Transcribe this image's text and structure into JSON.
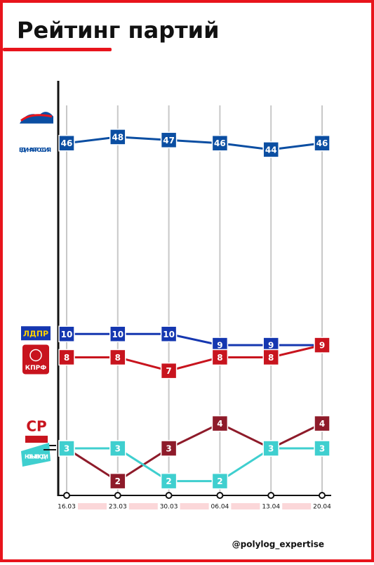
{
  "chart_data": {
    "type": "line",
    "title": "Рейтинг партий",
    "categories": [
      "16.03",
      "23.03",
      "30.03",
      "06.04",
      "13.04",
      "20.04"
    ],
    "series": [
      {
        "name": "ЕДИНАЯ РОССИЯ",
        "color": "#0b4ea2",
        "values": [
          46,
          48,
          47,
          46,
          44,
          46
        ]
      },
      {
        "name": "ЛДПР",
        "color": "#1537b0",
        "values": [
          10,
          10,
          10,
          9,
          9,
          9
        ]
      },
      {
        "name": "КПРФ",
        "color": "#c8141e",
        "values": [
          8,
          8,
          7,
          8,
          8,
          9
        ]
      },
      {
        "name": "СР",
        "color": "#8e1b2a",
        "values": [
          3,
          2,
          3,
          4,
          3,
          4
        ]
      },
      {
        "name": "НОВЫЕ ЛЮДИ",
        "color": "#3fcfcf",
        "values": [
          3,
          3,
          2,
          2,
          3,
          3
        ]
      }
    ],
    "credit": "@polylog_expertise"
  }
}
